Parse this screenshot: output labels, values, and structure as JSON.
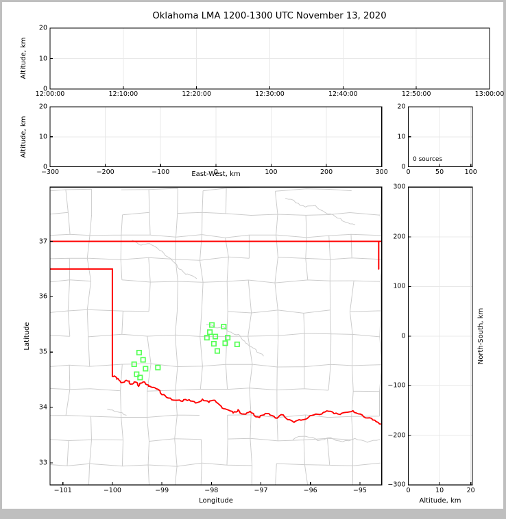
{
  "title": "Oklahoma LMA 1200-1300 UTC November 13, 2020",
  "colors": {
    "state_border": "#ff0000",
    "red_river": "#ff0000",
    "county_line": "#cccccc",
    "station_marker": "#55ff55",
    "panel_grid": "#e8e8e8",
    "axis_frame": "#000000",
    "window_border": "#bfbfbf",
    "background": "#ffffff"
  },
  "panels": {
    "time_height": {
      "ylabel": "Altitude, km",
      "xtick_labels": [
        "12:00:00",
        "12:10:00",
        "12:20:00",
        "12:30:00",
        "12:40:00",
        "12:50:00",
        "13:00:00"
      ],
      "ytick_labels": [
        "0",
        "10",
        "20"
      ]
    },
    "ew_height": {
      "xlabel": "East-West, km",
      "ylabel": "Altitude, km",
      "xtick_labels": [
        "−300",
        "−200",
        "−100",
        "0",
        "100",
        "200",
        "300"
      ],
      "ytick_labels": [
        "0",
        "10",
        "20"
      ]
    },
    "histogram": {
      "annotation": "0 sources",
      "xtick_labels": [
        "0",
        "50",
        "100"
      ],
      "ytick_labels": [
        "0",
        "10",
        "20"
      ]
    },
    "map": {
      "xlabel": "Longitude",
      "ylabel": "Latitude",
      "xtick_labels": [
        "−101",
        "−100",
        "−99",
        "−98",
        "−97",
        "−96",
        "−95"
      ],
      "ytick_labels": [
        "33",
        "34",
        "35",
        "36",
        "37"
      ]
    },
    "ns_height": {
      "xlabel": "Altitude, km",
      "ylabel_right": "North-South, km",
      "xtick_labels": [
        "0",
        "10",
        "20"
      ],
      "ytick_labels": [
        "300",
        "200",
        "100",
        "0",
        "−100",
        "−200",
        "−300"
      ]
    }
  },
  "chart_data": {
    "figure_title": "Oklahoma LMA 1200-1300 UTC November 13, 2020",
    "source_count": 0,
    "panels": [
      {
        "id": "time_height",
        "type": "scatter",
        "ylabel": "Altitude, km",
        "xlim_seconds": [
          0,
          3600
        ],
        "xticks_seconds": [
          0,
          600,
          1200,
          1800,
          2400,
          3000,
          3600
        ],
        "xtick_times": [
          "12:00:00",
          "12:10:00",
          "12:20:00",
          "12:30:00",
          "12:40:00",
          "12:50:00",
          "13:00:00"
        ],
        "ylim": [
          0,
          20
        ],
        "yticks": [
          0,
          10,
          20
        ],
        "points": []
      },
      {
        "id": "ew_height",
        "type": "scatter",
        "xlabel": "East-West, km",
        "ylabel": "Altitude, km",
        "xlim": [
          -300,
          300
        ],
        "xticks": [
          -300,
          -200,
          -100,
          0,
          100,
          200,
          300
        ],
        "ylim": [
          0,
          20
        ],
        "yticks": [
          0,
          10,
          20
        ],
        "points": []
      },
      {
        "id": "altitude_histogram",
        "type": "bar",
        "annotation": "0 sources",
        "xlim": [
          0,
          100
        ],
        "xticks": [
          0,
          50,
          100
        ],
        "ylim": [
          0,
          20
        ],
        "yticks": [
          0,
          10,
          20
        ],
        "values": []
      },
      {
        "id": "plan_view_map",
        "type": "scatter",
        "xlabel": "Longitude",
        "ylabel": "Latitude",
        "xlim": [
          -101.26,
          -94.56
        ],
        "xticks": [
          -101,
          -100,
          -99,
          -98,
          -97,
          -96,
          -95
        ],
        "ylim": [
          32.6,
          37.98
        ],
        "yticks": [
          33,
          34,
          35,
          36,
          37
        ],
        "lma_stations_lon_lat": [
          [
            -99.46,
            34.99
          ],
          [
            -99.38,
            34.86
          ],
          [
            -99.56,
            34.78
          ],
          [
            -99.33,
            34.7
          ],
          [
            -99.08,
            34.72
          ],
          [
            -99.51,
            34.6
          ],
          [
            -99.44,
            34.54
          ],
          [
            -97.99,
            35.49
          ],
          [
            -97.75,
            35.46
          ],
          [
            -98.03,
            35.36
          ],
          [
            -97.92,
            35.28
          ],
          [
            -98.09,
            35.26
          ],
          [
            -97.67,
            35.26
          ],
          [
            -97.95,
            35.15
          ],
          [
            -97.72,
            35.16
          ],
          [
            -97.48,
            35.14
          ],
          [
            -97.88,
            35.02
          ]
        ],
        "oklahoma_border": {
          "north_lat37": [
            [
              -101.26,
              37.0
            ],
            [
              -94.56,
              37.0
            ]
          ],
          "missouri_border_lon": [
            [
              -94.62,
              37.0
            ],
            [
              -94.62,
              36.5
            ]
          ],
          "panhandle_south_lat36_5": [
            [
              -101.26,
              36.5
            ],
            [
              -100.0,
              36.5
            ]
          ],
          "texas_east_lon100": [
            [
              -100.0,
              36.5
            ],
            [
              -100.0,
              34.56
            ]
          ],
          "red_river_south_border": [
            [
              -100.0,
              34.56
            ],
            [
              -99.93,
              34.55
            ],
            [
              -99.87,
              34.5
            ],
            [
              -99.8,
              34.45
            ],
            [
              -99.72,
              34.49
            ],
            [
              -99.64,
              34.42
            ],
            [
              -99.56,
              34.46
            ],
            [
              -99.47,
              34.38
            ],
            [
              -99.38,
              34.46
            ],
            [
              -99.3,
              34.41
            ],
            [
              -99.22,
              34.37
            ],
            [
              -99.12,
              34.34
            ],
            [
              -99.0,
              34.23
            ],
            [
              -98.87,
              34.17
            ],
            [
              -98.72,
              34.13
            ],
            [
              -98.58,
              34.11
            ],
            [
              -98.45,
              34.14
            ],
            [
              -98.32,
              34.08
            ],
            [
              -98.18,
              34.15
            ],
            [
              -98.05,
              34.09
            ],
            [
              -97.93,
              34.13
            ],
            [
              -97.8,
              34.02
            ],
            [
              -97.68,
              33.96
            ],
            [
              -97.56,
              33.9
            ],
            [
              -97.46,
              33.96
            ],
            [
              -97.34,
              33.88
            ],
            [
              -97.22,
              33.93
            ],
            [
              -97.1,
              33.83
            ],
            [
              -96.97,
              33.86
            ],
            [
              -96.84,
              33.89
            ],
            [
              -96.71,
              33.81
            ],
            [
              -96.59,
              33.87
            ],
            [
              -96.46,
              33.78
            ],
            [
              -96.33,
              33.73
            ],
            [
              -96.19,
              33.77
            ],
            [
              -96.04,
              33.82
            ],
            [
              -95.89,
              33.88
            ],
            [
              -95.74,
              33.91
            ],
            [
              -95.59,
              33.93
            ],
            [
              -95.44,
              33.88
            ],
            [
              -95.29,
              33.91
            ],
            [
              -95.14,
              33.94
            ],
            [
              -94.99,
              33.88
            ],
            [
              -94.84,
              33.81
            ],
            [
              -94.7,
              33.77
            ],
            [
              -94.56,
              33.7
            ]
          ]
        },
        "gray_rivers": [
          [
            [
              -99.6,
              37.02
            ],
            [
              -99.42,
              36.93
            ],
            [
              -99.25,
              36.96
            ],
            [
              -99.05,
              36.84
            ],
            [
              -98.88,
              36.72
            ],
            [
              -98.7,
              36.58
            ],
            [
              -98.57,
              36.45
            ],
            [
              -98.45,
              36.4
            ],
            [
              -98.3,
              36.33
            ]
          ],
          [
            [
              -98.1,
              35.5
            ],
            [
              -97.92,
              35.44
            ],
            [
              -97.76,
              35.46
            ],
            [
              -97.6,
              35.36
            ],
            [
              -97.45,
              35.32
            ],
            [
              -97.33,
              35.2
            ],
            [
              -97.2,
              35.1
            ],
            [
              -97.08,
              35.0
            ],
            [
              -96.95,
              34.93
            ]
          ],
          [
            [
              -96.5,
              37.78
            ],
            [
              -96.3,
              37.7
            ],
            [
              -96.1,
              37.62
            ],
            [
              -95.9,
              37.65
            ],
            [
              -95.7,
              37.52
            ],
            [
              -95.5,
              37.45
            ],
            [
              -95.3,
              37.35
            ],
            [
              -95.1,
              37.3
            ]
          ],
          [
            [
              -96.35,
              33.42
            ],
            [
              -96.1,
              33.48
            ],
            [
              -95.85,
              33.4
            ],
            [
              -95.6,
              33.46
            ],
            [
              -95.35,
              33.38
            ],
            [
              -95.1,
              33.44
            ],
            [
              -94.85,
              33.37
            ],
            [
              -94.6,
              33.42
            ]
          ],
          [
            [
              -100.1,
              33.97
            ],
            [
              -99.9,
              33.92
            ],
            [
              -99.72,
              33.86
            ]
          ]
        ]
      },
      {
        "id": "ns_height",
        "type": "scatter",
        "xlabel": "Altitude, km",
        "ylabel_right": "North-South, km",
        "xlim": [
          0,
          20.5
        ],
        "xticks": [
          0,
          10,
          20
        ],
        "ylim": [
          -300,
          300
        ],
        "yticks": [
          300,
          200,
          100,
          0,
          -100,
          -200,
          -300
        ],
        "points": []
      }
    ]
  }
}
